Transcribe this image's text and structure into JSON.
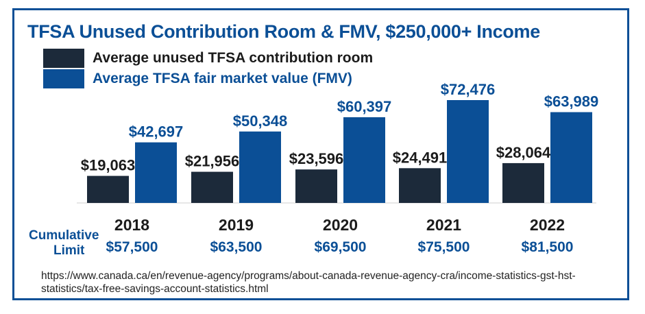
{
  "title": "TFSA Unused Contribution Room & FMV, $250,000+ Income",
  "colors": {
    "frame": "#0b4f96",
    "title": "#0b4f96",
    "dark": "#1c2a3a",
    "blue": "#0b4f96"
  },
  "legend": [
    {
      "label": "Average unused TFSA contribution room",
      "color": "#1c2a3a",
      "text_color": "#1b1b1b"
    },
    {
      "label": "Average TFSA fair market value (FMV)",
      "color": "#0b4f96",
      "text_color": "#0b4f96"
    }
  ],
  "chart_data": {
    "type": "bar",
    "title": "TFSA Unused Contribution Room & FMV, $250,000+ Income",
    "categories": [
      "2018",
      "2019",
      "2020",
      "2021",
      "2022"
    ],
    "series": [
      {
        "name": "Average unused TFSA contribution room",
        "values": [
          19063,
          21956,
          23596,
          24491,
          28064
        ],
        "labels": [
          "$19,063",
          "$21,956",
          "$23,596",
          "$24,491",
          "$28,064"
        ]
      },
      {
        "name": "Average TFSA fair market value (FMV)",
        "values": [
          42697,
          50348,
          60397,
          72476,
          63989
        ],
        "labels": [
          "$42,697",
          "$50,348",
          "$60,397",
          "$72,476",
          "$63,989"
        ]
      }
    ],
    "ylim": [
      0,
      80000
    ],
    "xlabel": "",
    "ylabel": "",
    "legend_position": "top-left",
    "cumulative_limit": {
      "label_line1": "Cumulative",
      "label_line2": "Limit",
      "values": [
        "$57,500",
        "$63,500",
        "$69,500",
        "$75,500",
        "$81,500"
      ]
    }
  },
  "source": "https://www.canada.ca/en/revenue-agency/programs/about-canada-revenue-agency-cra/income-statistics-gst-hst-statistics/tax-free-savings-account-statistics.html"
}
